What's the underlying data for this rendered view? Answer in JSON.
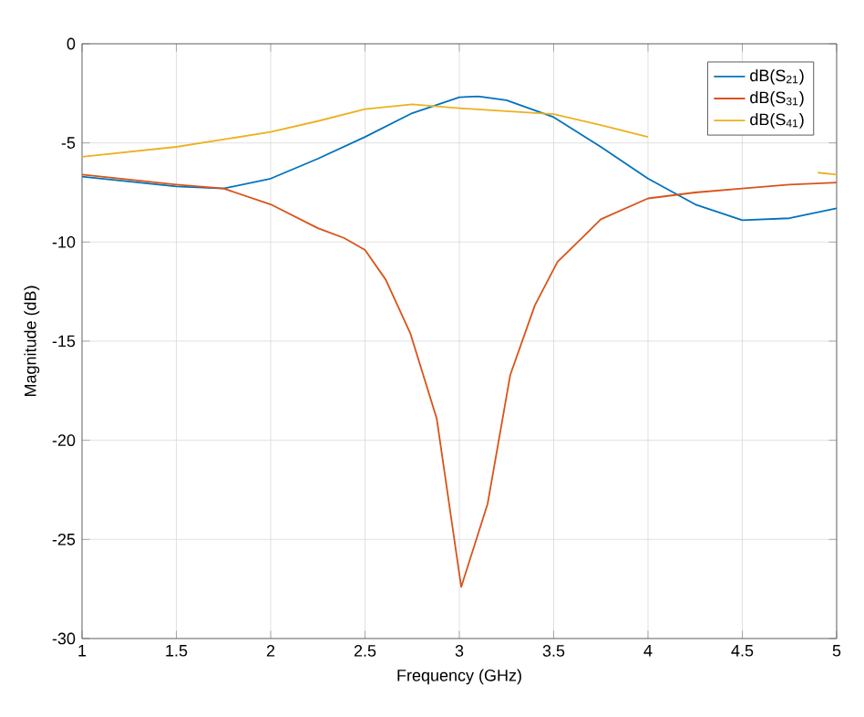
{
  "chart_data": {
    "type": "line",
    "xlabel": "Frequency (GHz)",
    "ylabel": "Magnitude (dB)",
    "xlim": [
      1,
      5
    ],
    "ylim": [
      -30,
      0
    ],
    "xticks": [
      1,
      1.5,
      2,
      2.5,
      3,
      3.5,
      4,
      4.5,
      5
    ],
    "yticks": [
      -30,
      -25,
      -20,
      -15,
      -10,
      -5,
      0
    ],
    "grid": true,
    "legend": "top right",
    "marker": "none",
    "line_style": "solid",
    "series": [
      {
        "name": "dB(S$_{21}$)",
        "color": "#0072bd",
        "x": [
          1,
          1.5,
          1.75,
          2,
          2.25,
          2.5,
          2.75,
          3,
          3.1,
          3.25,
          3.5,
          3.75,
          4,
          4.25,
          4.5,
          4.75,
          5
        ],
        "values": [
          -6.7,
          -7.2,
          -7.3,
          -6.8,
          -5.8,
          -4.7,
          -3.5,
          -2.7,
          -2.65,
          -2.85,
          -3.7,
          -5.2,
          -6.8,
          -8.1,
          -8.9,
          -8.8,
          -8.3
        ]
      },
      {
        "name": "dB(S$_{31}$)",
        "color": "#d95319",
        "x": [
          1,
          1.5,
          1.75,
          2,
          2.25,
          2.39,
          2.5,
          2.61,
          2.74,
          2.88,
          3.01,
          3.15,
          3.27,
          3.4,
          3.52,
          3.65,
          3.75,
          4,
          4.25,
          4.5,
          4.75,
          5
        ],
        "values": [
          -6.6,
          -7.1,
          -7.3,
          -8.1,
          -9.3,
          -9.8,
          -10.4,
          -11.9,
          -14.6,
          -18.9,
          -27.4,
          -23.2,
          -16.7,
          -13.2,
          -11,
          -9.8,
          -8.85,
          -7.8,
          -7.5,
          -7.3,
          -7.1,
          -7
        ]
      },
      {
        "name": "dB(S$_{41}$)",
        "color": "#edb120",
        "x": [
          1,
          1.5,
          2,
          2.25,
          2.5,
          2.75,
          3,
          3.25,
          3.5,
          3.75,
          4,
          4.25,
          4.5,
          4.75,
          4.9,
          5
        ],
        "values": [
          -5.7,
          -5.2,
          -4.45,
          -3.9,
          -3.3,
          -3.05,
          -3.25,
          -3.4,
          -3.55,
          -4.1,
          -4.7,
          null,
          null,
          null,
          -6.5,
          -6.6
        ]
      }
    ]
  }
}
